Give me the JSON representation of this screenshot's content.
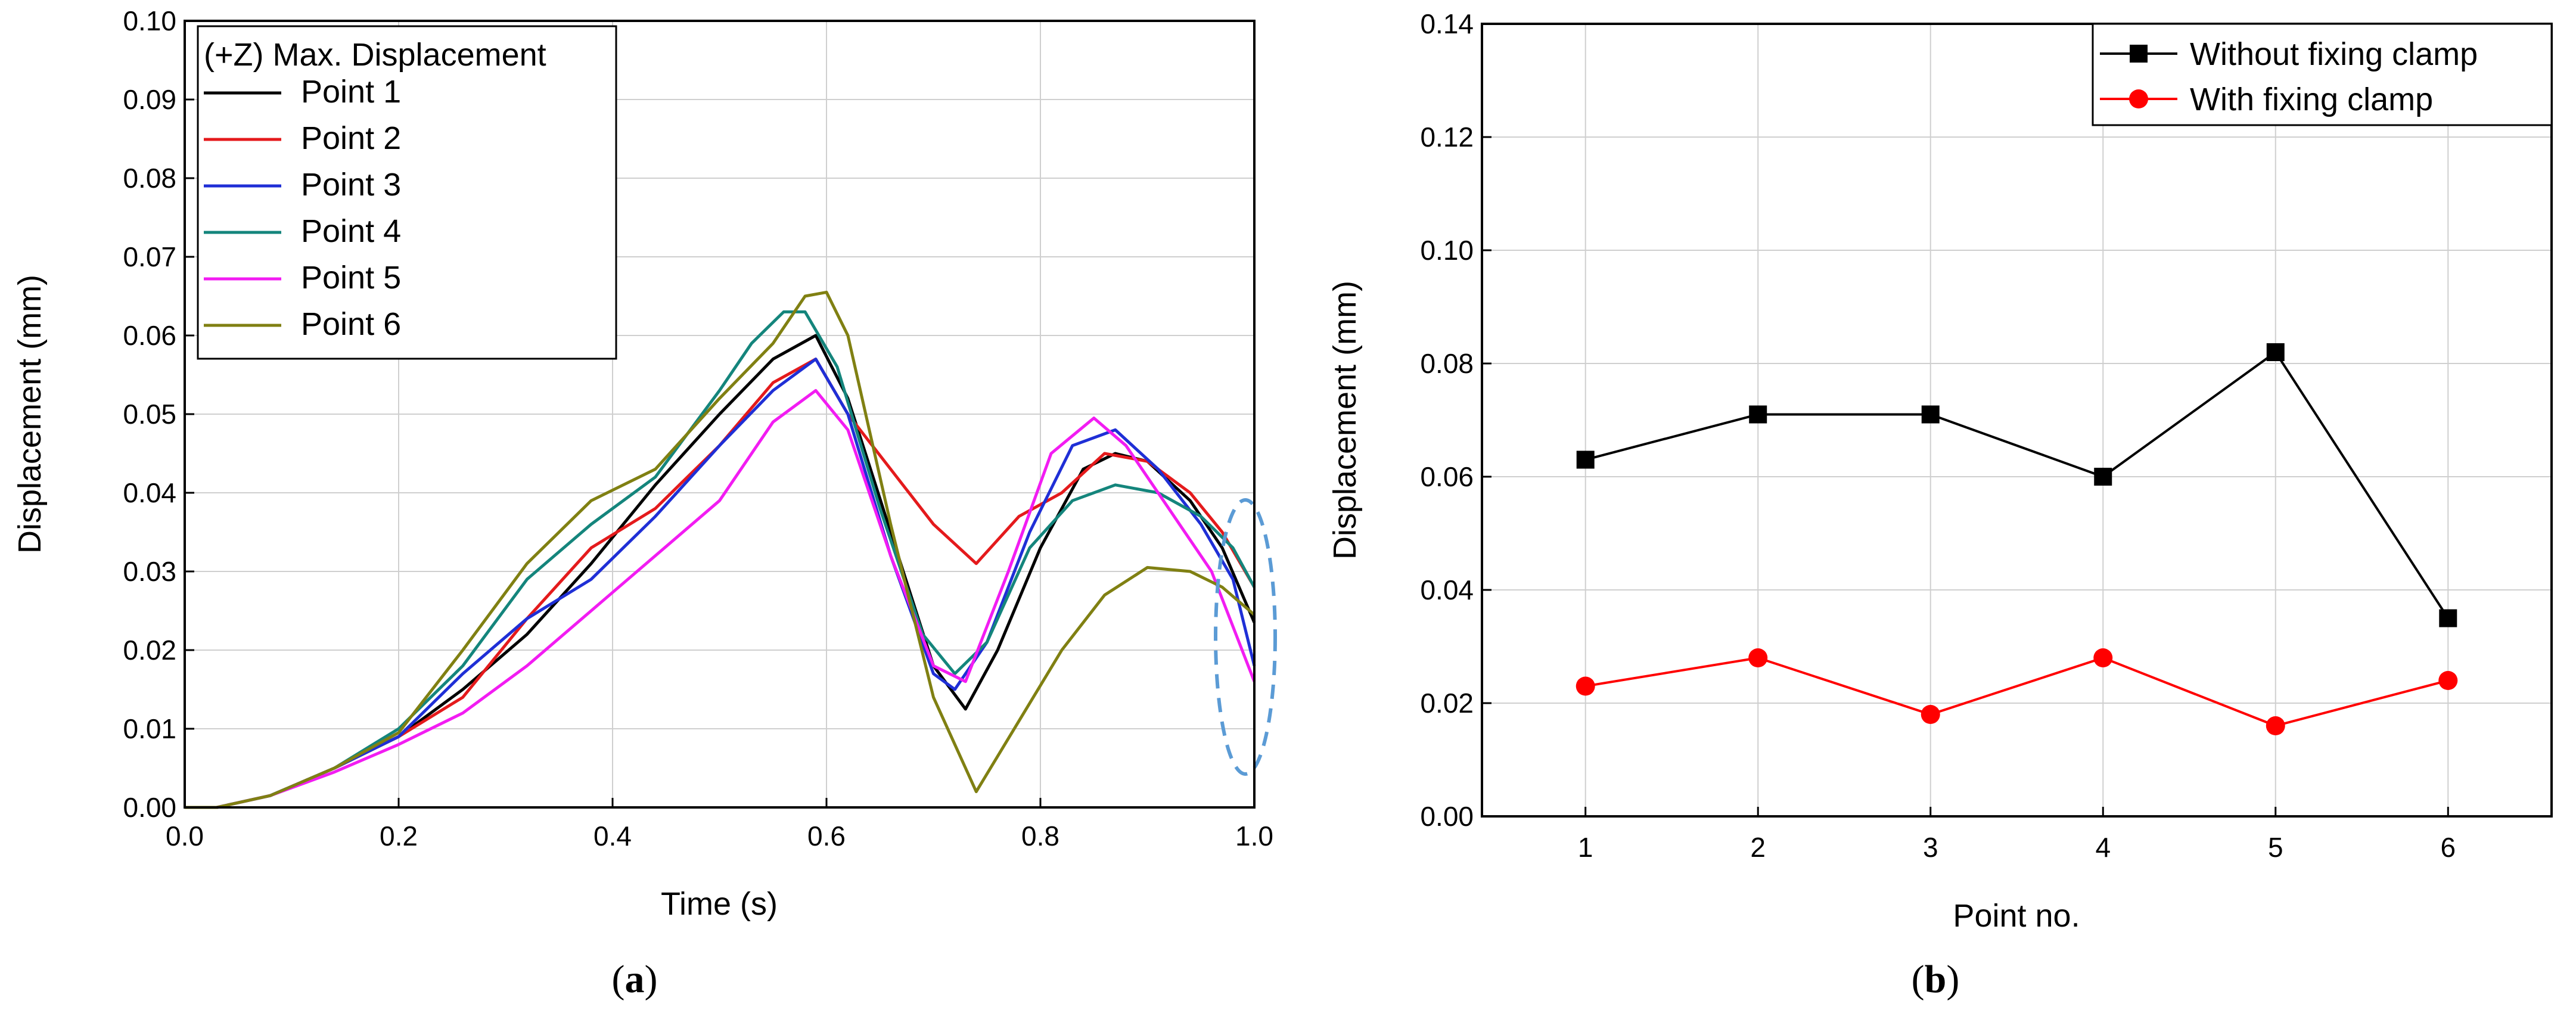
{
  "chart_data": [
    {
      "type": "line",
      "panel": "a",
      "panel_label": "a",
      "xlabel": "Time (s)",
      "ylabel": "Displacement (mm)",
      "xlim": [
        0.0,
        1.0
      ],
      "ylim": [
        0.0,
        0.1
      ],
      "xticks": [
        0.0,
        0.2,
        0.4,
        0.6,
        0.8,
        1.0
      ],
      "yticks": [
        0.0,
        0.01,
        0.02,
        0.03,
        0.04,
        0.05,
        0.06,
        0.07,
        0.08,
        0.09,
        0.1
      ],
      "xtick_labels": [
        "0.0",
        "0.2",
        "0.4",
        "0.6",
        "0.8",
        "1.0"
      ],
      "ytick_labels": [
        "0.00",
        "0.01",
        "0.02",
        "0.03",
        "0.04",
        "0.05",
        "0.06",
        "0.07",
        "0.08",
        "0.09",
        "0.10"
      ],
      "grid": true,
      "legend_title": "(+Z) Max. Displacement",
      "legend_position": "top-left",
      "annotation": "dashed ellipse around t = 1.0 s",
      "series": [
        {
          "name": "Point 1",
          "color": "#000000",
          "x": [
            0.0,
            0.03,
            0.08,
            0.14,
            0.2,
            0.26,
            0.32,
            0.38,
            0.44,
            0.5,
            0.55,
            0.59,
            0.62,
            0.66,
            0.7,
            0.73,
            0.76,
            0.8,
            0.84,
            0.87,
            0.9,
            0.94,
            0.97,
            1.0
          ],
          "values": [
            0.0,
            0.0,
            0.0015,
            0.005,
            0.009,
            0.015,
            0.022,
            0.031,
            0.041,
            0.05,
            0.057,
            0.06,
            0.052,
            0.035,
            0.018,
            0.0125,
            0.02,
            0.033,
            0.043,
            0.045,
            0.044,
            0.039,
            0.033,
            0.0235
          ]
        },
        {
          "name": "Point 2",
          "color": "#e41a1c",
          "x": [
            0.0,
            0.03,
            0.08,
            0.14,
            0.2,
            0.26,
            0.32,
            0.38,
            0.44,
            0.5,
            0.55,
            0.59,
            0.62,
            0.66,
            0.7,
            0.74,
            0.78,
            0.82,
            0.86,
            0.9,
            0.94,
            0.97,
            1.0
          ],
          "values": [
            0.0,
            0.0,
            0.0015,
            0.005,
            0.009,
            0.014,
            0.024,
            0.033,
            0.038,
            0.046,
            0.054,
            0.057,
            0.05,
            0.043,
            0.036,
            0.031,
            0.037,
            0.04,
            0.045,
            0.044,
            0.04,
            0.035,
            0.028
          ]
        },
        {
          "name": "Point 3",
          "color": "#1f2fd6",
          "x": [
            0.0,
            0.03,
            0.08,
            0.14,
            0.2,
            0.26,
            0.32,
            0.38,
            0.44,
            0.5,
            0.55,
            0.59,
            0.62,
            0.66,
            0.7,
            0.72,
            0.75,
            0.79,
            0.83,
            0.87,
            0.91,
            0.95,
            0.98,
            1.0
          ],
          "values": [
            0.0,
            0.0,
            0.0015,
            0.005,
            0.009,
            0.017,
            0.024,
            0.029,
            0.037,
            0.046,
            0.053,
            0.057,
            0.05,
            0.032,
            0.017,
            0.015,
            0.021,
            0.035,
            0.046,
            0.048,
            0.043,
            0.036,
            0.029,
            0.018
          ]
        },
        {
          "name": "Point 4",
          "color": "#14857c",
          "x": [
            0.0,
            0.03,
            0.08,
            0.14,
            0.2,
            0.26,
            0.32,
            0.38,
            0.44,
            0.5,
            0.53,
            0.56,
            0.58,
            0.61,
            0.65,
            0.69,
            0.72,
            0.75,
            0.79,
            0.83,
            0.87,
            0.91,
            0.95,
            0.98,
            1.0
          ],
          "values": [
            0.0,
            0.0,
            0.0015,
            0.005,
            0.01,
            0.018,
            0.029,
            0.036,
            0.042,
            0.053,
            0.059,
            0.063,
            0.063,
            0.056,
            0.038,
            0.022,
            0.017,
            0.021,
            0.033,
            0.039,
            0.041,
            0.04,
            0.037,
            0.033,
            0.028
          ]
        },
        {
          "name": "Point 5",
          "color": "#f21cf2",
          "x": [
            0.0,
            0.03,
            0.08,
            0.14,
            0.2,
            0.26,
            0.32,
            0.38,
            0.44,
            0.5,
            0.55,
            0.59,
            0.62,
            0.66,
            0.7,
            0.73,
            0.77,
            0.81,
            0.85,
            0.88,
            0.92,
            0.96,
            1.0
          ],
          "values": [
            0.0,
            0.0,
            0.0015,
            0.0045,
            0.008,
            0.012,
            0.018,
            0.025,
            0.032,
            0.039,
            0.049,
            0.053,
            0.048,
            0.032,
            0.018,
            0.016,
            0.03,
            0.045,
            0.0495,
            0.046,
            0.038,
            0.03,
            0.016
          ]
        },
        {
          "name": "Point 6",
          "color": "#808012",
          "x": [
            0.0,
            0.03,
            0.08,
            0.14,
            0.2,
            0.26,
            0.32,
            0.38,
            0.44,
            0.5,
            0.55,
            0.58,
            0.6,
            0.62,
            0.66,
            0.7,
            0.74,
            0.78,
            0.82,
            0.86,
            0.9,
            0.94,
            0.97,
            1.0
          ],
          "values": [
            0.0,
            0.0,
            0.0015,
            0.005,
            0.0095,
            0.02,
            0.031,
            0.039,
            0.043,
            0.052,
            0.059,
            0.065,
            0.0655,
            0.06,
            0.036,
            0.014,
            0.002,
            0.011,
            0.02,
            0.027,
            0.0305,
            0.03,
            0.028,
            0.0245
          ]
        }
      ]
    },
    {
      "type": "line",
      "panel": "b",
      "panel_label": "b",
      "xlabel": "Point no.",
      "ylabel": "Displacement (mm)",
      "xlim": [
        0.4,
        6.6
      ],
      "ylim": [
        0.0,
        0.14
      ],
      "categories": [
        "1",
        "2",
        "3",
        "4",
        "5",
        "6"
      ],
      "x": [
        1,
        2,
        3,
        4,
        5,
        6
      ],
      "yticks": [
        0.0,
        0.02,
        0.04,
        0.06,
        0.08,
        0.1,
        0.12,
        0.14
      ],
      "ytick_labels": [
        "0.00",
        "0.02",
        "0.04",
        "0.06",
        "0.08",
        "0.10",
        "0.12",
        "0.14"
      ],
      "grid": true,
      "legend_position": "top-right",
      "series": [
        {
          "name": "Without fixing clamp",
          "color": "#000000",
          "marker": "square",
          "values": [
            0.063,
            0.071,
            0.071,
            0.06,
            0.082,
            0.035
          ]
        },
        {
          "name": "With fixing clamp",
          "color": "#ff0000",
          "marker": "circle",
          "values": [
            0.023,
            0.028,
            0.018,
            0.028,
            0.016,
            0.024
          ]
        }
      ]
    }
  ]
}
